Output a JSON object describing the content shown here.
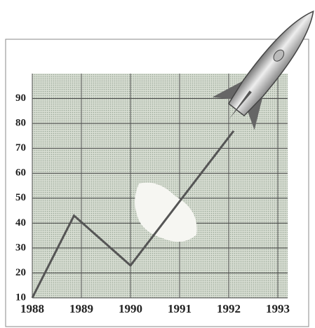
{
  "chart_data": {
    "type": "line",
    "x": [
      1988,
      1988.85,
      1990,
      1992.1
    ],
    "series": [
      {
        "color": "#555555",
        "values": [
          10,
          43,
          23,
          77
        ]
      }
    ],
    "xlim": [
      1988,
      1993.2
    ],
    "xticks": [
      1988,
      1989,
      1990,
      1991,
      1992,
      1993
    ],
    "ylim": [
      10,
      100
    ],
    "yticks": [
      10,
      20,
      30,
      40,
      50,
      60,
      70,
      80,
      90
    ],
    "grid": true
  }
}
